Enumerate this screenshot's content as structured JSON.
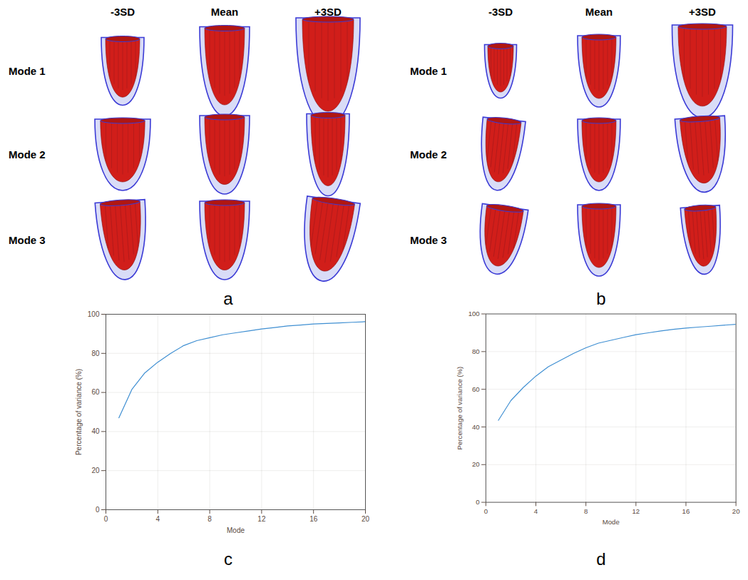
{
  "figure": {
    "shape_panels": [
      {
        "panel": "a",
        "columns": [
          "-3SD",
          "Mean",
          "+3SD"
        ],
        "rows": [
          "Mode 1",
          "Mode 2",
          "Mode 3"
        ]
      },
      {
        "panel": "b",
        "columns": [
          "-3SD",
          "Mean",
          "+3SD"
        ],
        "rows": [
          "Mode 1",
          "Mode 2",
          "Mode 3"
        ]
      }
    ]
  },
  "chart_data": [
    {
      "type": "line",
      "panel": "c",
      "xlabel": "Mode",
      "ylabel": "Percentage of variance (%)",
      "x": [
        1,
        2,
        3,
        4,
        5,
        6,
        7,
        8,
        9,
        10,
        11,
        12,
        13,
        14,
        15,
        16,
        17,
        18,
        19,
        20
      ],
      "values": [
        47,
        61.5,
        70,
        75.5,
        80,
        84,
        86.5,
        88,
        89.5,
        90.5,
        91.5,
        92.5,
        93.2,
        94,
        94.5,
        95,
        95.3,
        95.6,
        95.9,
        96.2
      ],
      "color": "#3f8fd2",
      "xlim": [
        0,
        20
      ],
      "xticks": [
        0,
        4,
        8,
        12,
        16,
        20
      ],
      "ylim": [
        0,
        100
      ],
      "yticks": [
        0,
        20,
        40,
        60,
        80,
        100
      ],
      "grid": true
    },
    {
      "type": "line",
      "panel": "d",
      "xlabel": "Mode",
      "ylabel": "Percentage of variance (%)",
      "x": [
        1,
        2,
        3,
        4,
        5,
        6,
        7,
        8,
        9,
        10,
        11,
        12,
        13,
        14,
        15,
        16,
        17,
        18,
        19,
        20
      ],
      "values": [
        43.5,
        54,
        61,
        67,
        72,
        75.5,
        79,
        82,
        84.5,
        86,
        87.5,
        89,
        90,
        91,
        91.8,
        92.5,
        93,
        93.5,
        94,
        94.5
      ],
      "color": "#3f8fd2",
      "xlim": [
        0,
        20
      ],
      "xticks": [
        0,
        4,
        8,
        12,
        16,
        20
      ],
      "ylim": [
        0,
        100
      ],
      "yticks": [
        0,
        20,
        40,
        60,
        80,
        100
      ],
      "grid": true
    }
  ]
}
